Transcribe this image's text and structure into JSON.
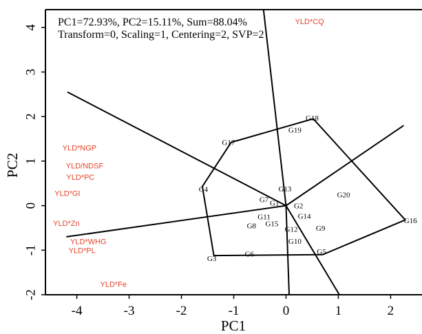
{
  "chart_data": {
    "type": "scatter",
    "xlabel": "PC1",
    "ylabel": "PC2",
    "xlim": [
      -4.6,
      2.6
    ],
    "ylim": [
      -2,
      4.4
    ],
    "xticks": [
      -4,
      -3,
      -2,
      -1,
      0,
      1,
      2
    ],
    "yticks": [
      -2,
      -1,
      0,
      1,
      2,
      3,
      4
    ],
    "grid": false,
    "info_line1": "PC1=72.93%, PC2=15.11%, Sum=88.04%",
    "info_line2": "Transform=0, Scaling=1, Centering=2, SVP=2",
    "colors": {
      "genotype": "#000000",
      "trait": "#e8402a",
      "lines": "#000000"
    },
    "genotypes": [
      {
        "name": "G1",
        "x": -0.22,
        "y": 0.04
      },
      {
        "name": "G2",
        "x": 0.24,
        "y": -0.02
      },
      {
        "name": "G3",
        "x": -1.42,
        "y": -1.2
      },
      {
        "name": "G4",
        "x": -1.58,
        "y": 0.35
      },
      {
        "name": "G5",
        "x": 0.68,
        "y": -1.05
      },
      {
        "name": "G6",
        "x": -0.7,
        "y": -1.1
      },
      {
        "name": "G7",
        "x": -0.42,
        "y": 0.12
      },
      {
        "name": "G8",
        "x": -0.66,
        "y": -0.47
      },
      {
        "name": "G9",
        "x": 0.66,
        "y": -0.52
      },
      {
        "name": "G10",
        "x": 0.17,
        "y": -0.82
      },
      {
        "name": "G11",
        "x": -0.42,
        "y": -0.27
      },
      {
        "name": "G12",
        "x": 0.1,
        "y": -0.55
      },
      {
        "name": "G13",
        "x": -0.02,
        "y": 0.36
      },
      {
        "name": "G14",
        "x": 0.35,
        "y": -0.25
      },
      {
        "name": "G15",
        "x": -0.27,
        "y": -0.42
      },
      {
        "name": "G16",
        "x": 2.38,
        "y": -0.35
      },
      {
        "name": "G17",
        "x": -1.1,
        "y": 1.4
      },
      {
        "name": "G18",
        "x": 0.5,
        "y": 1.95
      },
      {
        "name": "G19",
        "x": 0.17,
        "y": 1.68
      },
      {
        "name": "G20",
        "x": 1.1,
        "y": 0.23
      }
    ],
    "traits": [
      {
        "name": "YLD*CQ",
        "x": 0.45,
        "y": 4.12
      },
      {
        "name": "YLD*NGP",
        "x": -3.95,
        "y": 1.28
      },
      {
        "name": "YLD/NDSF",
        "x": -3.85,
        "y": 0.88
      },
      {
        "name": "YLD*PC",
        "x": -3.93,
        "y": 0.63
      },
      {
        "name": "YLD*GI",
        "x": -4.18,
        "y": 0.26
      },
      {
        "name": "YLD*Zn",
        "x": -4.2,
        "y": -0.41
      },
      {
        "name": "YLD*WHG",
        "x": -3.78,
        "y": -0.82
      },
      {
        "name": "YLD*PL",
        "x": -3.9,
        "y": -1.02
      },
      {
        "name": "YLD*Fe",
        "x": -3.3,
        "y": -1.78
      }
    ],
    "polygon": [
      [
        -1.05,
        1.42
      ],
      [
        0.52,
        1.95
      ],
      [
        2.28,
        -0.32
      ],
      [
        0.7,
        -1.1
      ],
      [
        -1.38,
        -1.12
      ],
      [
        -1.6,
        0.43
      ]
    ],
    "rays": [
      [
        -4.18,
        2.55
      ],
      [
        -0.45,
        4.6
      ],
      [
        2.25,
        1.8
      ],
      [
        1.02,
        -2.0
      ],
      [
        0.06,
        -2.0
      ],
      [
        -4.2,
        -0.7
      ]
    ]
  }
}
